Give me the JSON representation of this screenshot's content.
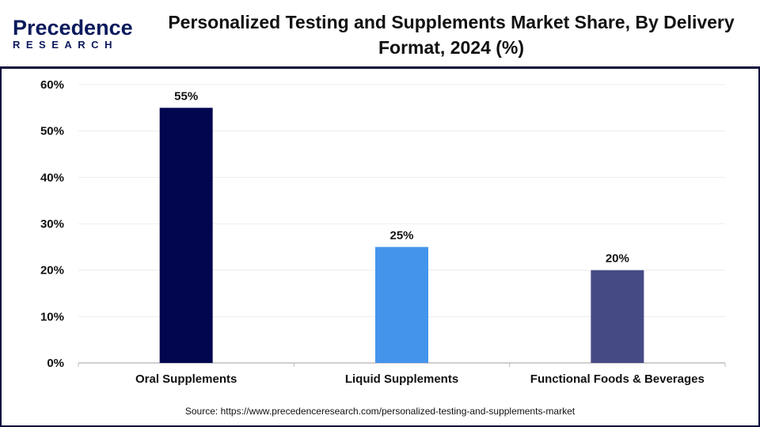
{
  "header": {
    "logo_line1": "Precedence",
    "logo_line2": "RESEARCH",
    "title": "Personalized Testing and Supplements Market Share, By Delivery Format, 2024 (%)"
  },
  "chart_data": {
    "type": "bar",
    "title": "Personalized Testing and Supplements Market Share, By Delivery Format, 2024 (%)",
    "categories": [
      "Oral Supplements",
      "Liquid Supplements",
      "Functional Foods & Beverages"
    ],
    "values": [
      55,
      25,
      20
    ],
    "data_labels": [
      "55%",
      "25%",
      "20%"
    ],
    "colors": [
      "#02064f",
      "#4594ec",
      "#454a85"
    ],
    "ylim": [
      0,
      60
    ],
    "yticks": [
      "0%",
      "10%",
      "20%",
      "30%",
      "40%",
      "50%",
      "60%"
    ],
    "xlabel": "",
    "ylabel": "",
    "grid": true,
    "legend": "none"
  },
  "source": "Source: https://www.precedenceresearch.com/personalized-testing-and-supplements-market"
}
